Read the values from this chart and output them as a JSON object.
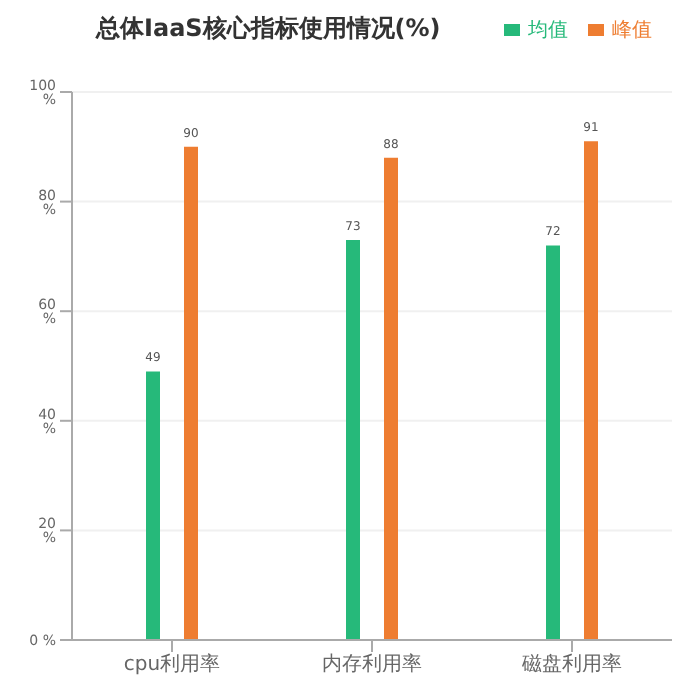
{
  "chart_data": {
    "type": "bar",
    "title": "总体IaaS核心指标使用情况(%)",
    "categories": [
      "cpu利用率",
      "内存利用率",
      "磁盘利用率"
    ],
    "series": [
      {
        "name": "均值",
        "color": "#26b97a",
        "values": [
          49,
          73,
          72
        ]
      },
      {
        "name": "峰值",
        "color": "#ee7d31",
        "values": [
          90,
          88,
          91
        ]
      }
    ],
    "ylim": [
      0,
      100
    ],
    "yticks": [
      {
        "value": 0,
        "label": "0 %"
      },
      {
        "value": 20,
        "label": "20 %"
      },
      {
        "value": 40,
        "label": "40 %"
      },
      {
        "value": 60,
        "label": "60 %"
      },
      {
        "value": 80,
        "label": "80 %"
      },
      {
        "value": 100,
        "label": "100 %"
      }
    ],
    "grid": "y",
    "legend": "top right",
    "data_labels": true
  }
}
